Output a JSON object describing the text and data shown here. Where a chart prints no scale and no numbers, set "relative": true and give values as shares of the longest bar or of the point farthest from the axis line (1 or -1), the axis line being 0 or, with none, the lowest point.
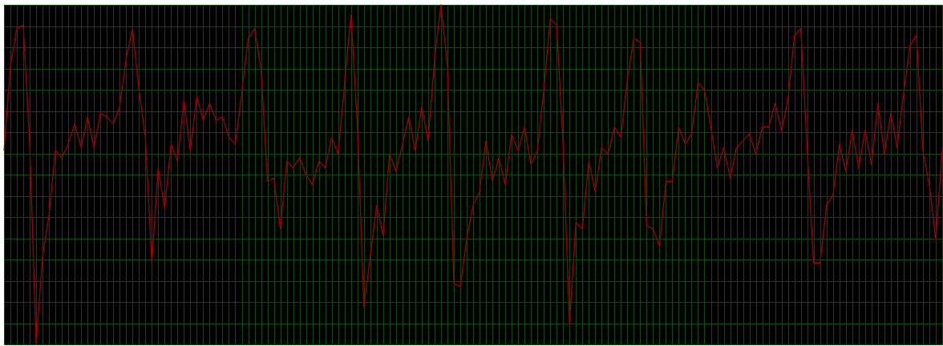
{
  "chart_data": {
    "type": "line",
    "relative": true,
    "grid": true,
    "categories": [
      null,
      null,
      null,
      null,
      null,
      null,
      null,
      null,
      null,
      null,
      null,
      null,
      null,
      null,
      null,
      null,
      null,
      null,
      null,
      null,
      null,
      null,
      null,
      null,
      null,
      null,
      null,
      null,
      null,
      null,
      null,
      null,
      null,
      null,
      null,
      null,
      null,
      null,
      null,
      null,
      null,
      null,
      null,
      null,
      null,
      null,
      null,
      null,
      null,
      null,
      null,
      null,
      null,
      null,
      null,
      null,
      null,
      null,
      null,
      null,
      null,
      null,
      null,
      null,
      null,
      null,
      null,
      null,
      null,
      null,
      null,
      null,
      null,
      null,
      null,
      null,
      null,
      null,
      null,
      null,
      null,
      null,
      null,
      null,
      null,
      null,
      null,
      null,
      null,
      null,
      null,
      null,
      null,
      null,
      null,
      null,
      null,
      null,
      null,
      null,
      null,
      null,
      null,
      null,
      null,
      null,
      null,
      null,
      null,
      null,
      null,
      null,
      null,
      null,
      null,
      null,
      null,
      null,
      null,
      null,
      null,
      null,
      null,
      null,
      null,
      null,
      null,
      null,
      null,
      null,
      null,
      null,
      null,
      null,
      null,
      null,
      null,
      null,
      null,
      null,
      null,
      null,
      null,
      null,
      null,
      null,
      null
    ],
    "series": [
      {
        "color": "#a00000",
        "values": [
          0.57,
          0.82,
          0.93,
          0.94,
          0.59,
          0,
          0.26,
          0.38,
          0.57,
          0.55,
          0.59,
          0.65,
          0.58,
          0.67,
          0.58,
          0.68,
          0.67,
          0.65,
          0.7,
          0.84,
          0.93,
          0.75,
          0.61,
          0.24,
          0.52,
          0.4,
          0.59,
          0.54,
          0.72,
          0.57,
          0.73,
          0.66,
          0.71,
          0.66,
          0.67,
          0.61,
          0.59,
          0.74,
          0.9,
          0.93,
          0.81,
          0.48,
          0.49,
          0.34,
          0.54,
          0.52,
          0.55,
          0.5,
          0.47,
          0.54,
          0.52,
          0.61,
          0.56,
          0.77,
          0.97,
          0.64,
          0.11,
          0.26,
          0.41,
          0.32,
          0.56,
          0.51,
          0.59,
          0.67,
          0.57,
          0.7,
          0.6,
          0.84,
          1,
          0.82,
          0.18,
          0.17,
          0.31,
          0.41,
          0.45,
          0.6,
          0.48,
          0.55,
          0.47,
          0.62,
          0.57,
          0.64,
          0.53,
          0.57,
          0.75,
          0.96,
          0.94,
          0.59,
          0.06,
          0.36,
          0.34,
          0.54,
          0.45,
          0.58,
          0.56,
          0.64,
          0.61,
          0.78,
          0.9,
          0.89,
          0.35,
          0.34,
          0.29,
          0.48,
          0.48,
          0.64,
          0.59,
          0.62,
          0.77,
          0.75,
          0.64,
          0.52,
          0.58,
          0.49,
          0.58,
          0.6,
          0.62,
          0.56,
          0.64,
          0.64,
          0.71,
          0.63,
          0.72,
          0.91,
          0.93,
          0.57,
          0.24,
          0.24,
          0.41,
          0.44,
          0.59,
          0.51,
          0.63,
          0.52,
          0.63,
          0.53,
          0.71,
          0.56,
          0.68,
          0.58,
          0.74,
          0.88,
          0.91,
          0.57,
          0.47,
          0.31,
          0.57
        ]
      }
    ]
  }
}
